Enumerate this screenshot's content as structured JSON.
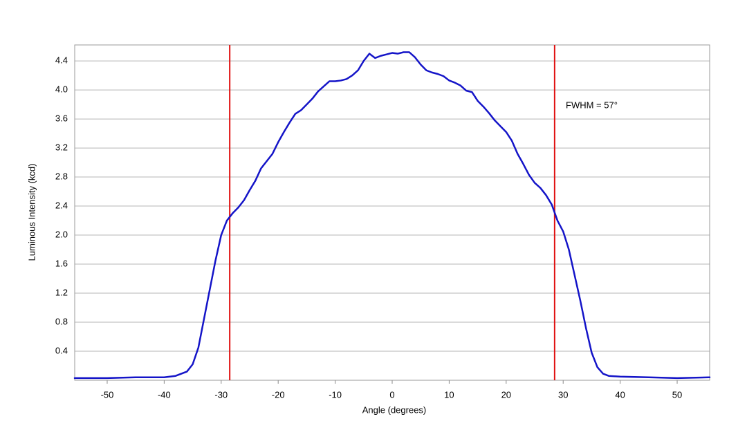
{
  "chart_data": {
    "type": "line",
    "xlabel": "Angle (degrees)",
    "ylabel": "Luminous Intensity (kcd)",
    "annotation": "FWHM = 57°",
    "xlim": [
      -55.7,
      55.7
    ],
    "ylim": [
      0,
      4.62
    ],
    "xticks": [
      -50,
      -40,
      -30,
      -20,
      -10,
      0,
      10,
      20,
      30,
      40,
      50
    ],
    "yticks": [
      0.4,
      0.8,
      1.2,
      1.6,
      {
        "value": 2,
        "label": "2.0"
      },
      2.4,
      2.8,
      3.2,
      3.6,
      {
        "value": 4,
        "label": "4.0"
      },
      4.4
    ],
    "grid": true,
    "vlines": [
      {
        "x": -28.5,
        "color": "#e01010"
      },
      {
        "x": 28.5,
        "color": "#e01010"
      }
    ],
    "x": [
      -55.7,
      -50,
      -45,
      -40,
      -38,
      -36,
      -35,
      -34,
      -33,
      -32,
      -31,
      -30,
      -29,
      -28,
      -27,
      -26,
      -25,
      -24,
      -23,
      -22,
      -21,
      -20,
      -19,
      -18,
      -17,
      -16,
      -15,
      -14,
      -13,
      -12,
      -11,
      -10,
      -9,
      -8,
      -7,
      -6,
      -5,
      -4,
      -3,
      -2,
      -1,
      0,
      1,
      2,
      3,
      4,
      5,
      6,
      7,
      8,
      9,
      10,
      11,
      12,
      13,
      14,
      15,
      16,
      17,
      18,
      19,
      20,
      21,
      22,
      23,
      24,
      25,
      26,
      27,
      28,
      29,
      30,
      31,
      32,
      33,
      34,
      35,
      36,
      37,
      38,
      40,
      45,
      50,
      55.7
    ],
    "series": [
      {
        "color": "#1414c8",
        "values": [
          0.03,
          0.03,
          0.04,
          0.04,
          0.06,
          0.12,
          0.22,
          0.45,
          0.85,
          1.25,
          1.65,
          2.0,
          2.2,
          2.3,
          2.38,
          2.48,
          2.62,
          2.75,
          2.92,
          3.02,
          3.12,
          3.28,
          3.42,
          3.55,
          3.67,
          3.72,
          3.8,
          3.88,
          3.98,
          4.05,
          4.12,
          4.12,
          4.13,
          4.15,
          4.2,
          4.27,
          4.4,
          4.5,
          4.44,
          4.47,
          4.49,
          4.51,
          4.5,
          4.52,
          4.52,
          4.45,
          4.35,
          4.27,
          4.24,
          4.22,
          4.19,
          4.13,
          4.1,
          4.06,
          3.99,
          3.97,
          3.85,
          3.77,
          3.68,
          3.58,
          3.5,
          3.42,
          3.3,
          3.12,
          2.98,
          2.83,
          2.72,
          2.65,
          2.55,
          2.42,
          2.2,
          2.05,
          1.8,
          1.45,
          1.1,
          0.72,
          0.38,
          0.18,
          0.09,
          0.06,
          0.05,
          0.04,
          0.03,
          0.04
        ]
      }
    ]
  }
}
